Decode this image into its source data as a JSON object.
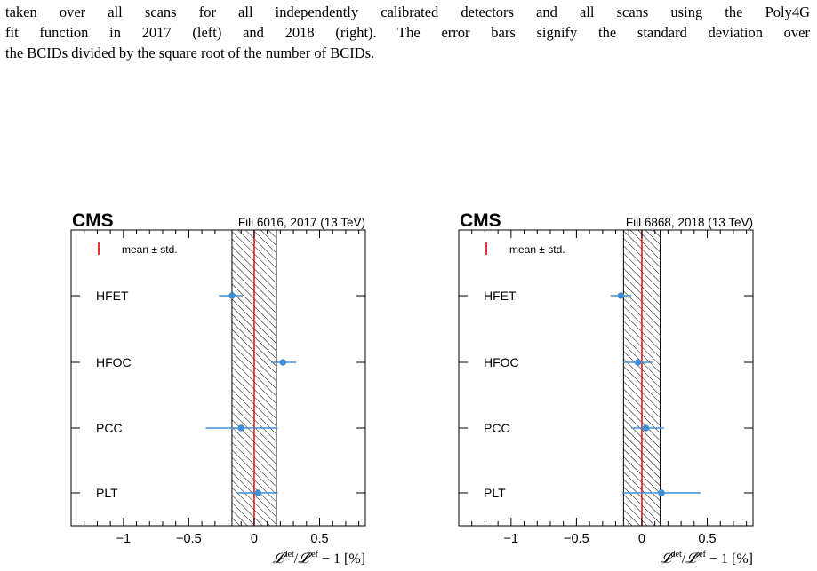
{
  "caption": {
    "line1": "taken over all scans for all independently calibrated detectors and all scans using the Poly4G",
    "line2": "fit function in 2017 (left) and 2018 (right). The error bars signify the standard deviation over",
    "line3": "the BCIDs divided by the square root of the number of BCIDs."
  },
  "colors": {
    "point": "#3f8fd8",
    "mean_line": "#e31a1c",
    "hatch": "#000000"
  },
  "chart_data": [
    {
      "type": "scatter",
      "experiment_label": "CMS",
      "fill_label": "Fill 6016, 2017 (13 TeV)",
      "legend_text": "mean ± std.",
      "xlabel_parts": {
        "L": "𝓛",
        "det": "det",
        "slash": "/",
        "ref": "ref",
        "rest": " − 1 [%]"
      },
      "xlim": [
        -1.4,
        0.85
      ],
      "ticks": [
        -1,
        -0.5,
        0,
        0.5
      ],
      "tick_labels": [
        "−1",
        "−0.5",
        "0",
        "0.5"
      ],
      "categories": [
        "HFET",
        "HFOC",
        "PCC",
        "PLT"
      ],
      "points": [
        {
          "detector": "HFET",
          "value": -0.17,
          "err_low": 0.1,
          "err_high": 0.08
        },
        {
          "detector": "HFOC",
          "value": 0.22,
          "err_low": 0.09,
          "err_high": 0.1
        },
        {
          "detector": "PCC",
          "value": -0.1,
          "err_low": 0.27,
          "err_high": 0.28
        },
        {
          "detector": "PLT",
          "value": 0.03,
          "err_low": 0.16,
          "err_high": 0.15
        }
      ],
      "mean": 0.0,
      "band": [
        -0.17,
        0.17
      ]
    },
    {
      "type": "scatter",
      "experiment_label": "CMS",
      "fill_label": "Fill 6868, 2018 (13 TeV)",
      "legend_text": "mean ± std.",
      "xlabel_parts": {
        "L": "𝓛",
        "det": "det",
        "slash": "/",
        "ref": "ref",
        "rest": " − 1 [%]"
      },
      "xlim": [
        -1.4,
        0.85
      ],
      "ticks": [
        -1,
        -0.5,
        0,
        0.5
      ],
      "tick_labels": [
        "−1",
        "−0.5",
        "0",
        "0.5"
      ],
      "categories": [
        "HFET",
        "HFOC",
        "PCC",
        "PLT"
      ],
      "points": [
        {
          "detector": "HFET",
          "value": -0.16,
          "err_low": 0.08,
          "err_high": 0.08
        },
        {
          "detector": "HFOC",
          "value": -0.03,
          "err_low": 0.11,
          "err_high": 0.11
        },
        {
          "detector": "PCC",
          "value": 0.03,
          "err_low": 0.11,
          "err_high": 0.14
        },
        {
          "detector": "PLT",
          "value": 0.15,
          "err_low": 0.3,
          "err_high": 0.3
        }
      ],
      "mean": 0.0,
      "band": [
        -0.14,
        0.14
      ]
    }
  ]
}
